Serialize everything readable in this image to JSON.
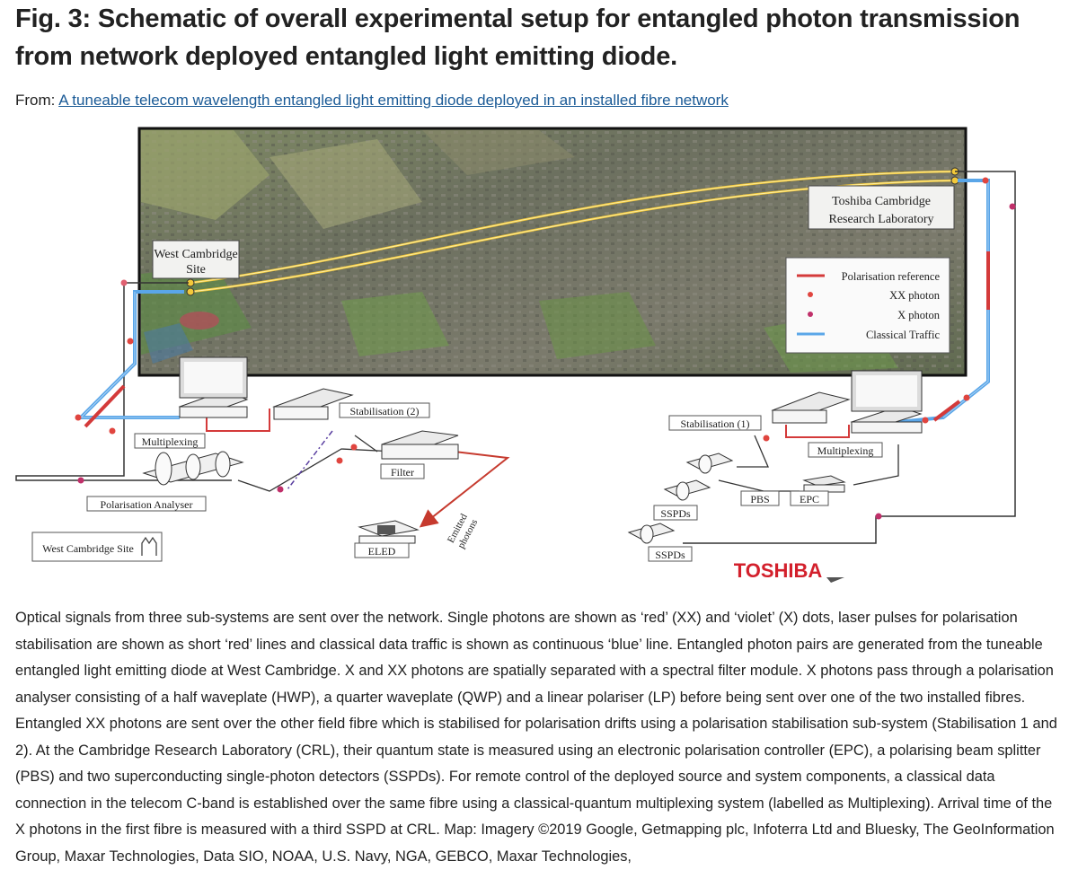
{
  "title": "Fig. 3: Schematic of overall experimental setup for entangled photon transmission from network deployed entangled light emitting diode.",
  "from_label": "From:",
  "from_link": "A tuneable telecom wavelength entangled light emitting diode deployed in an installed fibre network",
  "figure": {
    "site_west": "West Cambridge\nSite",
    "site_west_line1": "West Cambridge",
    "site_west_line2": "Site",
    "site_toshiba_line1": "Toshiba Cambridge",
    "site_toshiba_line2": "Research Laboratory",
    "legend": [
      {
        "label": "Polarisation reference",
        "color": "#d43a3a"
      },
      {
        "label": "XX photon",
        "color": "#e0453f"
      },
      {
        "label": "X photon",
        "color": "#c0306a"
      },
      {
        "label": "Classical Traffic",
        "color": "#5aa6e8"
      }
    ],
    "labels": {
      "multiplexing_left": "Multiplexing",
      "stabilisation2": "Stabilisation (2)",
      "filter": "Filter",
      "polarisation_analyser": "Polarisation Analyser",
      "eled": "ELED",
      "emitted_photons_1": "Emitted",
      "emitted_photons_2": "photons",
      "west_cambridge_site_badge": "West Cambridge Site",
      "stabilisation1": "Stabilisation (1)",
      "multiplexing_right": "Multiplexing",
      "pbs": "PBS",
      "epc": "EPC",
      "sspds_1": "SSPDs",
      "sspds_2": "SSPDs",
      "toshiba_logo": "TOSHIBA"
    }
  },
  "caption": "Optical signals from three sub-systems are sent over the network. Single photons are shown as ‘red’ (XX) and ‘violet’ (X) dots, laser pulses for polarisation stabilisation are shown as short ‘red’ lines and classical data traffic is shown as continuous ‘blue’ line. Entangled photon pairs are generated from the tuneable entangled light emitting diode at West Cambridge. X and XX photons are spatially separated with a spectral filter module. X photons pass through a polarisation analyser consisting of a half waveplate (HWP), a quarter waveplate (QWP) and a linear polariser (LP) before being sent over one of the two installed fibres. Entangled XX photons are sent over the other field fibre which is stabilised for polarisation drifts using a polarisation stabilisation sub-system (Stabilisation 1 and 2). At the Cambridge Research Laboratory (CRL), their quantum state is measured using an electronic polarisation controller (EPC), a polarising beam splitter (PBS) and two superconducting single-photon detectors (SSPDs). For remote control of the deployed source and system components, a classical data connection in the telecom C-band is established over the same fibre using a classical-quantum multiplexing system (labelled as Multiplexing). Arrival time of the X photons in the first fibre is measured with a third SSPD at CRL. Map: Imagery ©2019 Google, Getmapping plc, Infoterra Ltd and Bluesky, The GeoInformation Group, Maxar Technologies, Data SIO, NOAA, U.S. Navy, NGA, GEBCO, Maxar Technologies,"
}
